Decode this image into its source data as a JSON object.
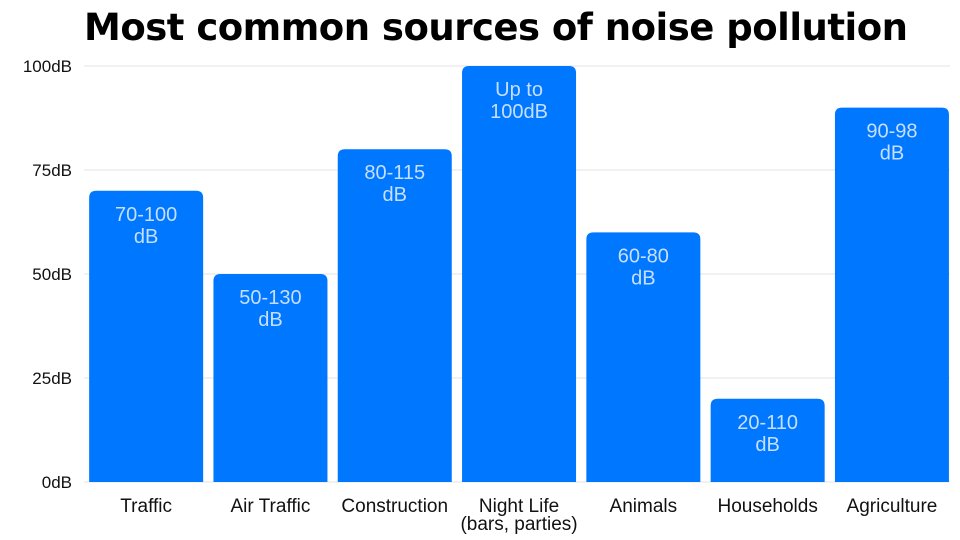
{
  "colors": {
    "bar": "#0077FF",
    "bar_label": "#C7DFFF",
    "grid": "#E3E3E3",
    "text": "#111111"
  },
  "chart_data": {
    "type": "bar",
    "title": "Most common sources of noise pollution",
    "xlabel": "",
    "ylabel": "",
    "ylim": [
      0,
      100
    ],
    "y_ticks": [
      {
        "value": 0,
        "label": "0dB"
      },
      {
        "value": 25,
        "label": "25dB"
      },
      {
        "value": 50,
        "label": "50dB"
      },
      {
        "value": 75,
        "label": "75dB"
      },
      {
        "value": 100,
        "label": "100dB"
      }
    ],
    "grid": true,
    "categories": [
      [
        "Traffic"
      ],
      [
        "Air Traffic"
      ],
      [
        "Construction"
      ],
      [
        "Night Life",
        "(bars, parties)"
      ],
      [
        "Animals"
      ],
      [
        "Households"
      ],
      [
        "Agriculture"
      ]
    ],
    "values": [
      70,
      50,
      80,
      100,
      60,
      20,
      90
    ],
    "data_labels": [
      [
        "70-100",
        "dB"
      ],
      [
        "50-130",
        "dB"
      ],
      [
        "80-115",
        "dB"
      ],
      [
        "Up to",
        "100dB"
      ],
      [
        "60-80",
        "dB"
      ],
      [
        "20-110",
        "dB"
      ],
      [
        "90-98",
        "dB"
      ]
    ]
  }
}
